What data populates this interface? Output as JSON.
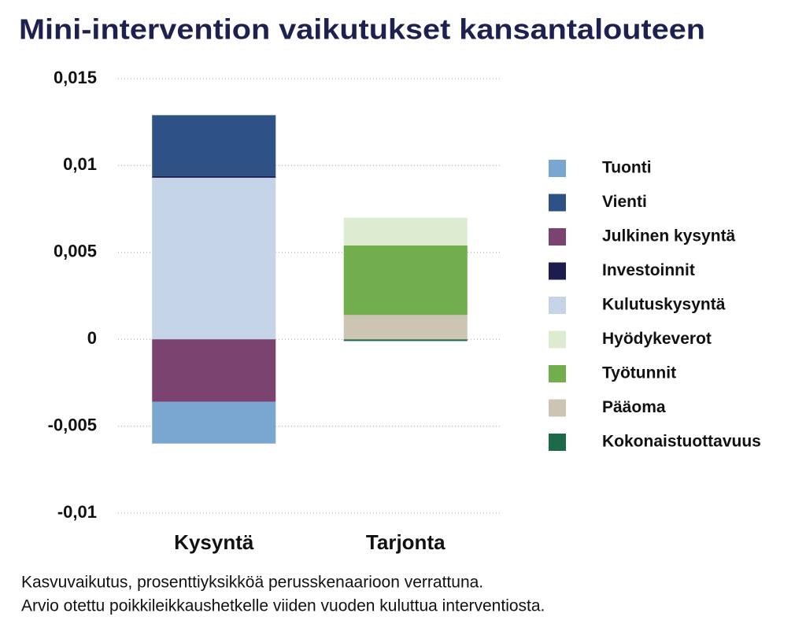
{
  "chart_data": {
    "type": "stacked_bar",
    "title": "Mini-intervention vaikutukset kansantalouteen",
    "categories": [
      "Kysyntä",
      "Tarjonta"
    ],
    "series": [
      {
        "name": "Tuonti",
        "color": "#7aa6d2",
        "values": [
          -0.0024,
          0
        ]
      },
      {
        "name": "Vienti",
        "color": "#2e5285",
        "values": [
          0.0035,
          0
        ]
      },
      {
        "name": "Julkinen kysyntä",
        "color": "#7b4470",
        "values": [
          -0.0036,
          0
        ]
      },
      {
        "name": "Investoinnit",
        "color": "#1c1c4f",
        "values": [
          0.0001,
          0
        ]
      },
      {
        "name": "Kulutuskysyntä",
        "color": "#c5d5e7",
        "values": [
          0.0093,
          0
        ]
      },
      {
        "name": "Hyödykeverot",
        "color": "#ddebd1",
        "values": [
          0,
          0.0016
        ]
      },
      {
        "name": "Työtunnit",
        "color": "#72ad4e",
        "values": [
          0,
          0.004
        ]
      },
      {
        "name": "Pääoma",
        "color": "#cdc5b4",
        "values": [
          0,
          0.0014
        ]
      },
      {
        "name": "Kokonaistuottavuus",
        "color": "#1d6a4a",
        "values": [
          0,
          -0.0001
        ]
      }
    ],
    "ylim": [
      -0.01,
      0.015
    ],
    "yticks": [
      {
        "value": -0.01,
        "label": "-0,01"
      },
      {
        "value": -0.005,
        "label": "-0,005"
      },
      0,
      {
        "value": 0.005,
        "label": "0,005"
      },
      {
        "value": 0.01,
        "label": "0,01"
      },
      {
        "value": 0.015,
        "label": "0,015"
      }
    ],
    "grid": true,
    "legend": "right",
    "notes": [
      "Kasvuvaikutus, prosenttiyksikköä perusskenaarioon verrattuna.",
      "Arvio otettu poikkileikkaushetkelle viiden vuoden kuluttua interventiosta."
    ]
  }
}
